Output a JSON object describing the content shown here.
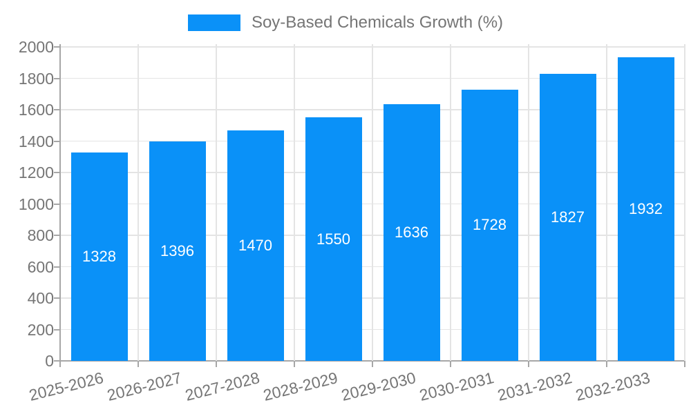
{
  "chart_data": {
    "type": "bar",
    "title": "Soy-Based Chemicals Growth (%)",
    "categories": [
      "2025-2026",
      "2026-2027",
      "2027-2028",
      "2028-2029",
      "2029-2030",
      "2030-2031",
      "2031-2032",
      "2032-2033"
    ],
    "values": [
      1328,
      1396,
      1470,
      1550,
      1636,
      1728,
      1827,
      1932
    ],
    "ylabel": "",
    "xlabel": "",
    "ylim": [
      0,
      2000
    ],
    "ytick_step": 200,
    "ytick_labels": [
      "0",
      "200",
      "400",
      "600",
      "800",
      "1000",
      "1200",
      "1400",
      "1600",
      "1800",
      "2000"
    ],
    "grid": "on",
    "legend_position": "top-center",
    "value_labels": "inside-center",
    "colors": {
      "bar": "#0a91f8",
      "value_label": "#ffffff",
      "axis_text": "#757575",
      "grid_line": "#e4e4e4",
      "axis_line": "#a6a6a6",
      "background": "#ffffff"
    }
  }
}
